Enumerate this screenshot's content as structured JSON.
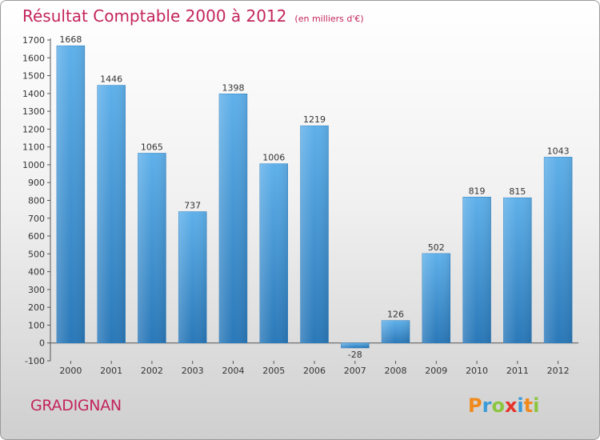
{
  "chart_data": {
    "type": "bar",
    "title": "Résultat Comptable 2000 à 2012",
    "subtitle": "(en milliers d'€)",
    "categories": [
      "2000",
      "2001",
      "2002",
      "2003",
      "2004",
      "2005",
      "2006",
      "2007",
      "2008",
      "2009",
      "2010",
      "2011",
      "2012"
    ],
    "values": [
      1668,
      1446,
      1065,
      737,
      1398,
      1006,
      1219,
      -28,
      126,
      502,
      819,
      815,
      1043
    ],
    "ylim": [
      -100,
      1700
    ],
    "yticks": [
      -100,
      0,
      100,
      200,
      300,
      400,
      500,
      600,
      700,
      800,
      900,
      1000,
      1100,
      1200,
      1300,
      1400,
      1500,
      1600,
      1700
    ],
    "grid": false,
    "bar_color": "#3d8fd0",
    "xlabel": "",
    "ylabel": ""
  },
  "footer": {
    "city": "GRADIGNAN",
    "logo": "Proxiti",
    "logo_colors": [
      "#f08a1c",
      "#3a9bd8",
      "#8cc63f",
      "#e6332a",
      "#3a9bd8",
      "#f08a1c",
      "#8cc63f"
    ]
  },
  "colors": {
    "accent": "#c3245c"
  }
}
